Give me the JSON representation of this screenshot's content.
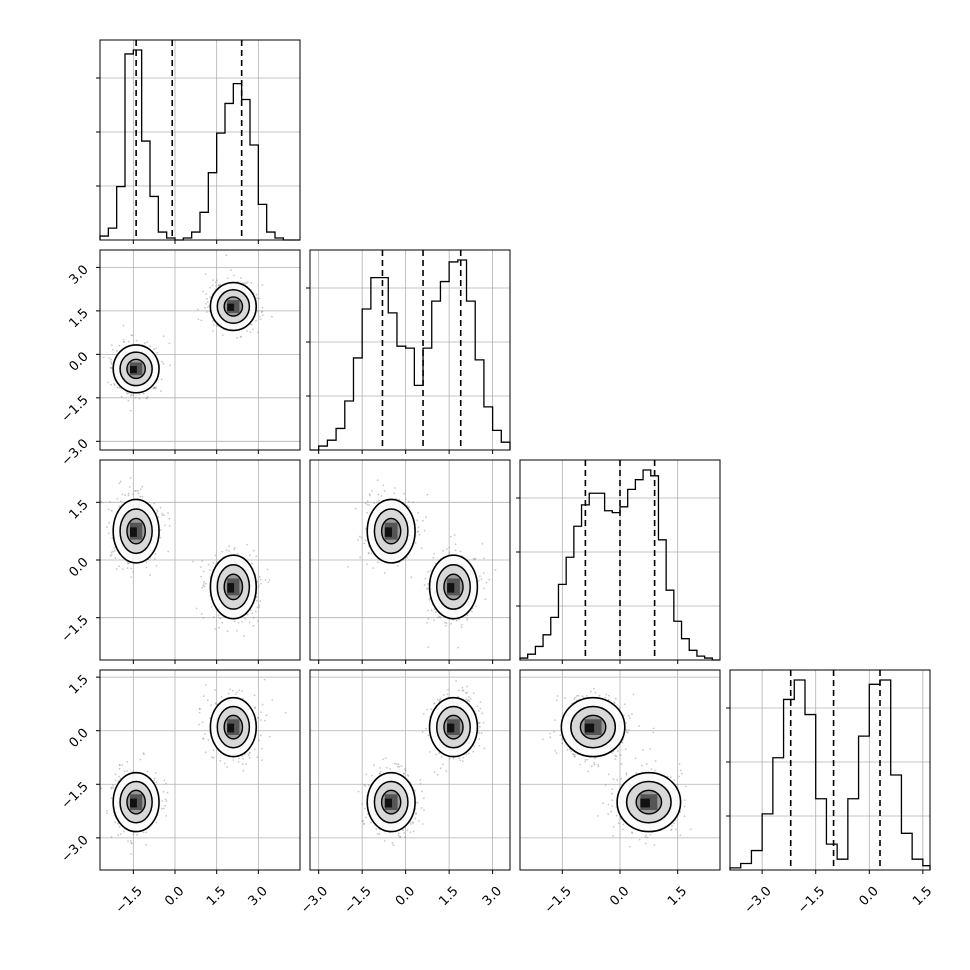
{
  "chart_data": {
    "type": "corner",
    "dimensions": 4,
    "bimodal_component_centers": [
      [
        -1.4,
        -0.5,
        0.75,
        -2.0
      ],
      [
        2.1,
        1.65,
        -0.7,
        0.1
      ]
    ],
    "quantile_lines": {
      "x0": [
        -1.4,
        -0.1,
        2.4
      ],
      "x1": [
        -0.8,
        0.6,
        1.9
      ],
      "x2": [
        -0.9,
        0.0,
        0.9
      ],
      "x3": [
        -2.2,
        -1.0,
        0.3
      ]
    },
    "axes": {
      "x0": {
        "range": [
          -2.7,
          4.5
        ],
        "ticks": [
          "−1.5",
          "0.0",
          "1.5",
          "3.0"
        ],
        "tick_values": [
          -1.5,
          0.0,
          1.5,
          3.0
        ]
      },
      "x1": {
        "range": [
          -3.3,
          3.6
        ],
        "ticks": [
          "−3.0",
          "−1.5",
          "0.0",
          "1.5",
          "3.0"
        ],
        "tick_values": [
          -3.0,
          -1.5,
          0.0,
          1.5,
          3.0
        ]
      },
      "x2": {
        "range": [
          -2.6,
          2.6
        ],
        "ticks": [
          "−1.5",
          "0.0",
          "1.5"
        ],
        "tick_values": [
          -1.5,
          0.0,
          1.5
        ]
      },
      "x3": {
        "range": [
          -3.9,
          1.7
        ],
        "ticks": [
          "−3.0",
          "−1.5",
          "0.0",
          "1.5"
        ],
        "tick_values": [
          -3.0,
          -1.5,
          0.0,
          1.5
        ]
      }
    },
    "histograms": [
      {
        "dim": "x0",
        "bin_edges": [
          -2.7,
          -2.4,
          -2.1,
          -1.8,
          -1.5,
          -1.2,
          -0.9,
          -0.6,
          -0.3,
          0.0,
          0.3,
          0.6,
          0.9,
          1.2,
          1.5,
          1.8,
          2.1,
          2.4,
          2.7,
          3.0,
          3.3,
          3.6,
          3.9,
          4.2,
          4.5
        ],
        "counts": [
          0.02,
          0.06,
          0.27,
          0.94,
          0.96,
          0.5,
          0.22,
          0.04,
          0.01,
          0.0,
          0.01,
          0.04,
          0.14,
          0.34,
          0.54,
          0.69,
          0.79,
          0.71,
          0.48,
          0.18,
          0.04,
          0.01,
          0.0,
          0.0
        ]
      },
      {
        "dim": "x1",
        "bin_edges": [
          -3.3,
          -3.0,
          -2.7,
          -2.4,
          -2.1,
          -1.8,
          -1.5,
          -1.2,
          -0.9,
          -0.6,
          -0.3,
          0.0,
          0.3,
          0.6,
          0.9,
          1.2,
          1.5,
          1.8,
          2.1,
          2.4,
          2.7,
          3.0,
          3.3,
          3.6
        ],
        "counts": [
          0.0,
          0.02,
          0.05,
          0.11,
          0.25,
          0.47,
          0.72,
          0.88,
          0.88,
          0.7,
          0.53,
          0.52,
          0.33,
          0.52,
          0.76,
          0.86,
          0.96,
          0.97,
          0.76,
          0.46,
          0.22,
          0.1,
          0.04
        ]
      },
      {
        "dim": "x2",
        "bin_edges": [
          -2.6,
          -2.4,
          -2.2,
          -2.0,
          -1.8,
          -1.6,
          -1.4,
          -1.2,
          -1.0,
          -0.8,
          -0.6,
          -0.4,
          -0.2,
          0.0,
          0.2,
          0.4,
          0.6,
          0.8,
          1.0,
          1.2,
          1.4,
          1.6,
          1.8,
          2.0,
          2.2,
          2.4,
          2.6
        ],
        "counts": [
          0.01,
          0.03,
          0.07,
          0.13,
          0.22,
          0.39,
          0.53,
          0.69,
          0.8,
          0.86,
          0.86,
          0.77,
          0.76,
          0.79,
          0.88,
          0.93,
          0.98,
          0.95,
          0.62,
          0.36,
          0.2,
          0.11,
          0.05,
          0.02,
          0.01,
          0.0
        ]
      },
      {
        "dim": "x3",
        "bin_edges": [
          -3.9,
          -3.6,
          -3.3,
          -3.0,
          -2.7,
          -2.4,
          -2.1,
          -1.8,
          -1.5,
          -1.2,
          -0.9,
          -0.6,
          -0.3,
          0.0,
          0.3,
          0.6,
          0.9,
          1.2,
          1.5,
          1.7
        ],
        "counts": [
          0.01,
          0.03,
          0.09,
          0.26,
          0.52,
          0.79,
          0.88,
          0.72,
          0.33,
          0.12,
          0.05,
          0.33,
          0.62,
          0.86,
          0.88,
          0.44,
          0.17,
          0.05,
          0.02
        ]
      }
    ]
  },
  "icons": {
    "cursor": ""
  }
}
